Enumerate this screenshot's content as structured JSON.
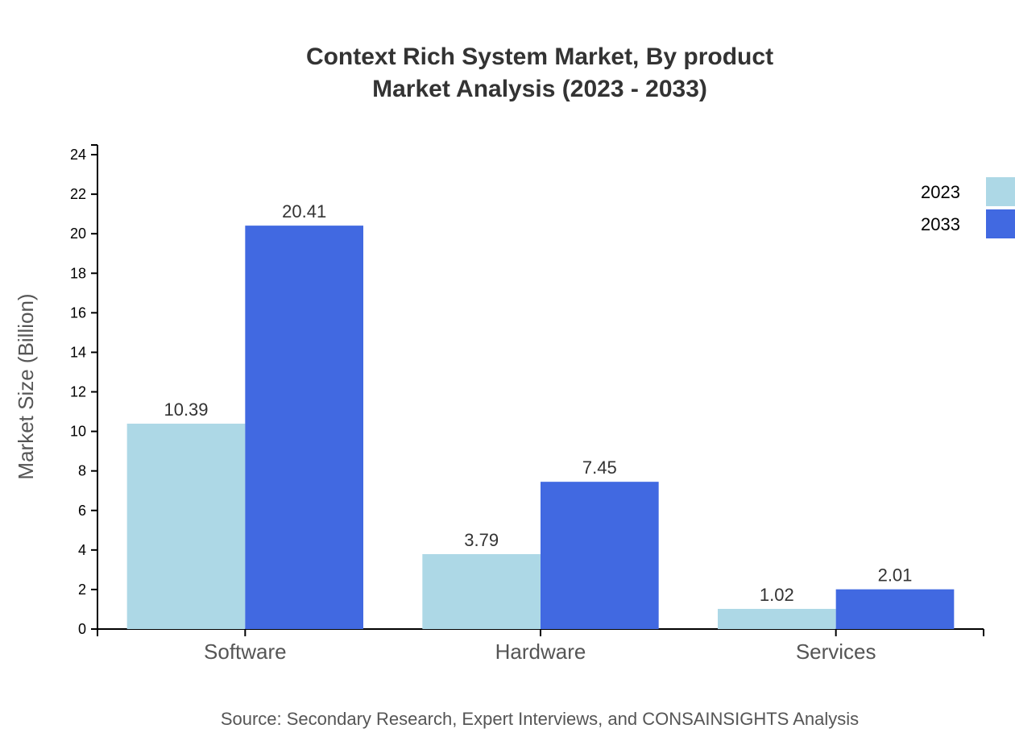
{
  "chart_data": {
    "type": "bar",
    "title": "Context Rich System Market, By product",
    "subtitle": "Market Analysis (2023 - 2033)",
    "xlabel": "",
    "ylabel": "Market Size (Billion)",
    "source": "Source: Secondary Research, Expert Interviews, and CONSAINSIGHTS Analysis",
    "categories": [
      "Software",
      "Hardware",
      "Services"
    ],
    "series": [
      {
        "name": "2023",
        "color": "#add8e6",
        "values": [
          10.39,
          3.79,
          1.02
        ]
      },
      {
        "name": "2033",
        "color": "#4169e1",
        "values": [
          20.41,
          7.45,
          2.01
        ]
      }
    ],
    "ylim": [
      0,
      24.49
    ],
    "yticks": [
      0,
      2,
      4,
      6,
      8,
      10,
      12,
      14,
      16,
      18,
      20,
      22,
      24
    ],
    "grid": false,
    "legend": "top-right"
  }
}
